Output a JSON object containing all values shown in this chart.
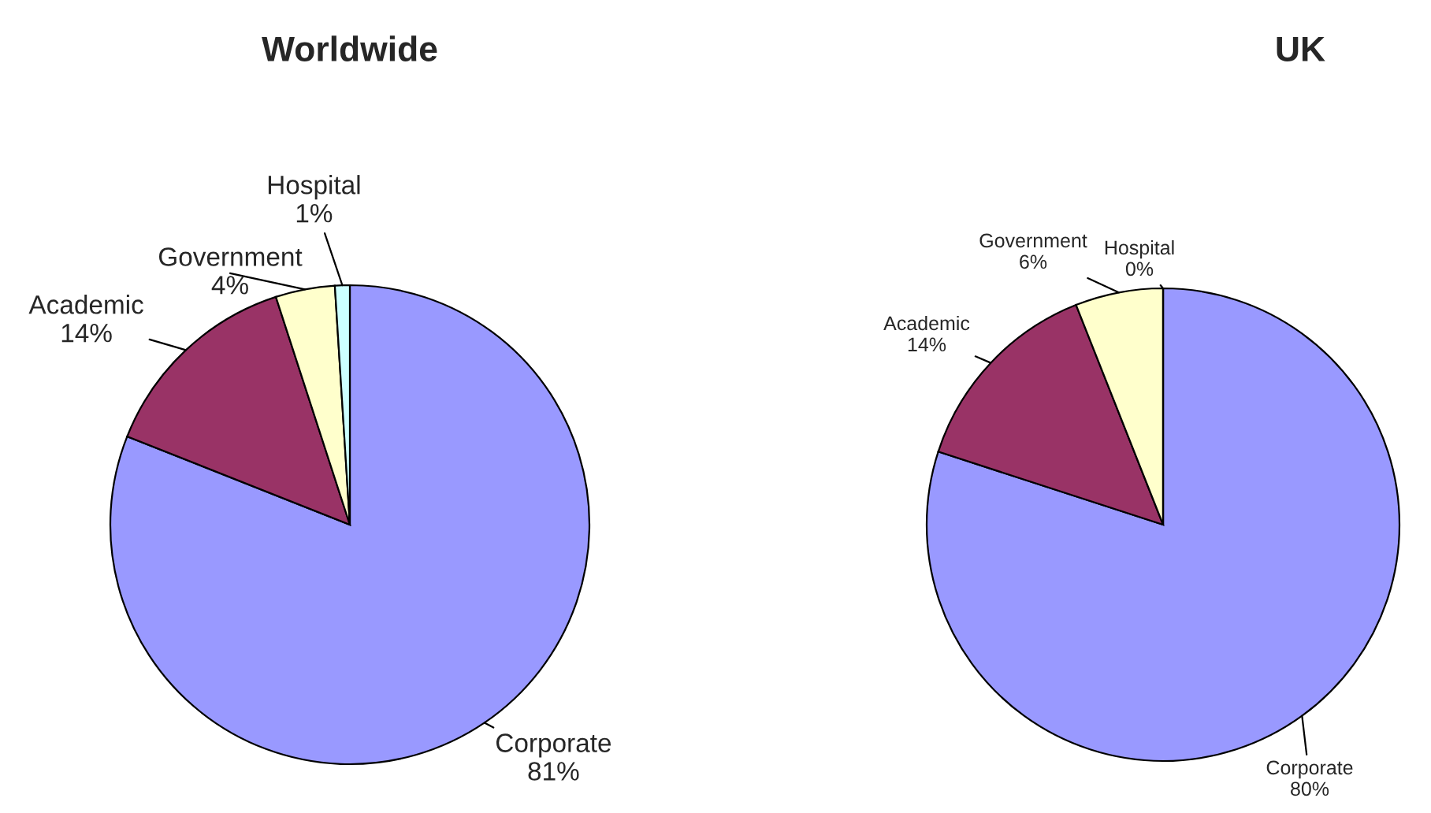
{
  "chart_data": [
    {
      "type": "pie",
      "title": "Worldwide",
      "categories": [
        "Corporate",
        "Academic",
        "Government",
        "Hospital"
      ],
      "values": [
        81,
        14,
        4,
        1
      ],
      "value_labels": [
        "81%",
        "14%",
        "4%",
        "1%"
      ],
      "colors": [
        "#9999ff",
        "#993366",
        "#ffffcc",
        "#ccffff"
      ]
    },
    {
      "type": "pie",
      "title": "UK",
      "categories": [
        "Corporate",
        "Academic",
        "Government",
        "Hospital"
      ],
      "values": [
        80,
        14,
        6,
        0
      ],
      "value_labels": [
        "80%",
        "14%",
        "6%",
        "0%"
      ],
      "colors": [
        "#9999ff",
        "#993366",
        "#ffffcc",
        "#ccffff"
      ]
    }
  ]
}
